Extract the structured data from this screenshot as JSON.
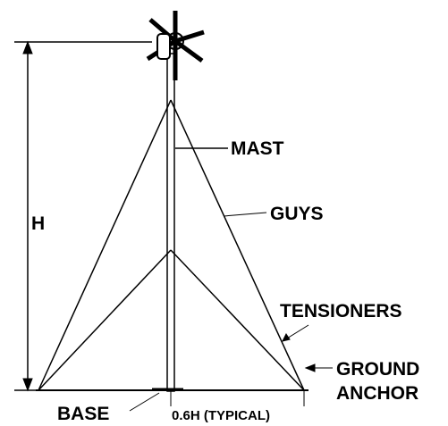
{
  "labels": {
    "height": "H",
    "mast": "MAST",
    "guys": "GUYS",
    "tensioners": "TENSIONERS",
    "ground_anchor": [
      "GROUND",
      "ANCHOR"
    ],
    "base": "BASE",
    "spacing": "0.6H (TYPICAL)"
  }
}
